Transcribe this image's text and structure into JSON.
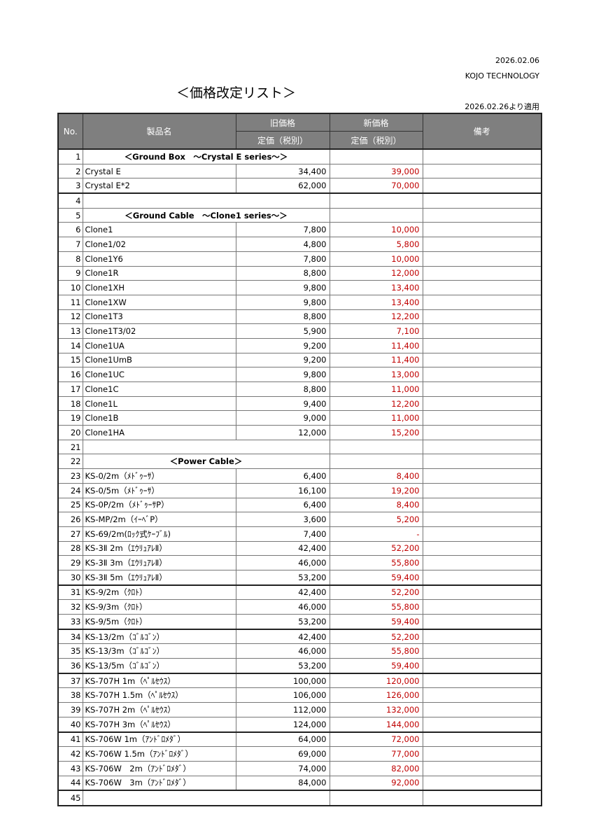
{
  "header": {
    "date": "2026.02.06",
    "company": "KOJO TECHNOLOGY",
    "title": "＜価格改定リスト＞",
    "effective": "2026.02.26より適用"
  },
  "columns": {
    "no": "No.",
    "name": "製品名",
    "old_price": "旧価格",
    "new_price": "新価格",
    "sub_old": "定価（税別）",
    "sub_new": "定価（税別）",
    "notes": "備考"
  },
  "colors": {
    "new_price": "#c00000",
    "header_bg": "#7f7f7f"
  },
  "rows": [
    {
      "no": "1",
      "section": "＜Ground Box　～Crystal E series～＞"
    },
    {
      "no": "2",
      "name": "Crystal E",
      "old": "34,400",
      "new": "39,000"
    },
    {
      "no": "3",
      "name": "Crystal E*2",
      "old": "62,000",
      "new": "70,000"
    },
    {
      "no": "4",
      "section": ""
    },
    {
      "no": "5",
      "section": "＜Ground Cable　～Clone1 series～＞"
    },
    {
      "no": "6",
      "name": "Clone1",
      "old": "7,800",
      "new": "10,000"
    },
    {
      "no": "7",
      "name": "Clone1/02",
      "old": "4,800",
      "new": "5,800"
    },
    {
      "no": "8",
      "name": "Clone1Y6",
      "old": "7,800",
      "new": "10,000"
    },
    {
      "no": "9",
      "name": "Clone1R",
      "old": "8,800",
      "new": "12,000"
    },
    {
      "no": "10",
      "name": "Clone1XH",
      "old": "9,800",
      "new": "13,400"
    },
    {
      "no": "11",
      "name": "Clone1XW",
      "old": "9,800",
      "new": "13,400"
    },
    {
      "no": "12",
      "name": "Clone1T3",
      "old": "8,800",
      "new": "12,200"
    },
    {
      "no": "13",
      "name": "Clone1T3/02",
      "old": "5,900",
      "new": "7,100"
    },
    {
      "no": "14",
      "name": "Clone1UA",
      "old": "9,200",
      "new": "11,400"
    },
    {
      "no": "15",
      "name": "Clone1UmB",
      "old": "9,200",
      "new": "11,400"
    },
    {
      "no": "16",
      "name": "Clone1UC",
      "old": "9,800",
      "new": "13,000"
    },
    {
      "no": "17",
      "name": "Clone1C",
      "old": "8,800",
      "new": "11,000"
    },
    {
      "no": "18",
      "name": "Clone1L",
      "old": "9,400",
      "new": "12,200"
    },
    {
      "no": "19",
      "name": "Clone1B",
      "old": "9,000",
      "new": "11,000"
    },
    {
      "no": "20",
      "name": "Clone1HA",
      "old": "12,000",
      "new": "15,200"
    },
    {
      "no": "21",
      "section": ""
    },
    {
      "no": "22",
      "section": "＜Power Cable＞"
    },
    {
      "no": "23",
      "name": "KS-0/2m（ﾒﾄﾞｩｰｻ）",
      "old": "6,400",
      "new": "8,400"
    },
    {
      "no": "24",
      "name": "KS-0/5m（ﾒﾄﾞｩｰｻ）",
      "old": "16,100",
      "new": "19,200"
    },
    {
      "no": "25",
      "name": "KS-0P/2m（ﾒﾄﾞｩｰｻP）",
      "old": "6,400",
      "new": "8,400"
    },
    {
      "no": "26",
      "name": "KS-MP/2m（ｲｰﾍﾞP）",
      "old": "3,600",
      "new": "5,200"
    },
    {
      "no": "27",
      "name": "KS-69/2m(ﾛｯｸ式ｹｰﾌﾞﾙ)",
      "old": "7,400",
      "new": "-"
    },
    {
      "no": "28",
      "name": "KS-3Ⅱ 2m（ｴｳﾘｭｱﾚⅡ）",
      "old": "42,400",
      "new": "52,200"
    },
    {
      "no": "29",
      "name": "KS-3Ⅱ 3m（ｴｳﾘｭｱﾚⅡ）",
      "old": "46,000",
      "new": "55,800"
    },
    {
      "no": "30",
      "name": "KS-3Ⅱ 5m（ｴｳﾘｭｱﾚⅡ）",
      "old": "53,200",
      "new": "59,400"
    },
    {
      "no": "31",
      "name": "KS-9/2m（ｸﾛﾄ）",
      "old": "42,400",
      "new": "52,200"
    },
    {
      "no": "32",
      "name": "KS-9/3m（ｸﾛﾄ）",
      "old": "46,000",
      "new": "55,800"
    },
    {
      "no": "33",
      "name": "KS-9/5m（ｸﾛﾄ）",
      "old": "53,200",
      "new": "59,400"
    },
    {
      "no": "34",
      "name": "KS-13/2m（ｺﾞﾙｺﾞﾝ）",
      "old": "42,400",
      "new": "52,200"
    },
    {
      "no": "35",
      "name": "KS-13/3m（ｺﾞﾙｺﾞﾝ）",
      "old": "46,000",
      "new": "55,800"
    },
    {
      "no": "36",
      "name": "KS-13/5m（ｺﾞﾙｺﾞﾝ）",
      "old": "53,200",
      "new": "59,400"
    },
    {
      "no": "37",
      "name": "KS-707H 1m（ﾍﾟﾙｾｳｽ）",
      "old": "100,000",
      "new": "120,000"
    },
    {
      "no": "38",
      "name": "KS-707H 1.5m（ﾍﾟﾙｾｳｽ）",
      "old": "106,000",
      "new": "126,000"
    },
    {
      "no": "39",
      "name": "KS-707H 2m（ﾍﾟﾙｾｳｽ）",
      "old": "112,000",
      "new": "132,000"
    },
    {
      "no": "40",
      "name": "KS-707H 3m（ﾍﾟﾙｾｳｽ）",
      "old": "124,000",
      "new": "144,000"
    },
    {
      "no": "41",
      "name": "KS-706W 1m（ｱﾝﾄﾞﾛﾒﾀﾞ）",
      "old": "64,000",
      "new": "72,000"
    },
    {
      "no": "42",
      "name": "KS-706W 1.5m（ｱﾝﾄﾞﾛﾒﾀﾞ）",
      "old": "69,000",
      "new": "77,000"
    },
    {
      "no": "43",
      "name": "KS-706W　2m（ｱﾝﾄﾞﾛﾒﾀﾞ）",
      "old": "74,000",
      "new": "82,000"
    },
    {
      "no": "44",
      "name": "KS-706W　3m（ｱﾝﾄﾞﾛﾒﾀﾞ）",
      "old": "84,000",
      "new": "92,000"
    },
    {
      "no": "45",
      "section": ""
    }
  ]
}
